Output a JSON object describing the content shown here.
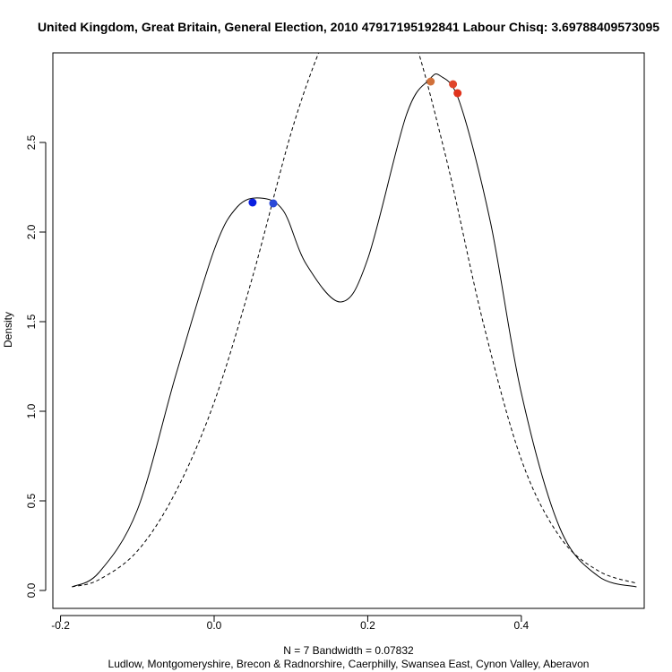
{
  "chart_data": {
    "type": "line",
    "title": "United Kingdom, Great Britain, General Election, 2010 47917195192841 Labour Chisq: 3.69788409573095",
    "ylabel": "Density",
    "xlabel_line1": "N = 7   Bandwidth = 0.07832",
    "xlabel_line2": "Ludlow, Montgomeryshire, Brecon & Radnorshire, Caerphilly, Swansea East, Cynon Valley, Aberavon",
    "xlim": [
      -0.21,
      0.56
    ],
    "ylim": [
      -0.1,
      3.0
    ],
    "x_ticks": [
      -0.2,
      0.0,
      0.2,
      0.4
    ],
    "x_tick_labels": [
      "-0.2",
      "0.0",
      "0.2",
      "0.4"
    ],
    "y_ticks": [
      0.0,
      0.5,
      1.0,
      1.5,
      2.0,
      2.5
    ],
    "y_tick_labels": [
      "0.0",
      "0.5",
      "1.0",
      "1.5",
      "2.0",
      "2.5"
    ],
    "bandwidth": 0.07832,
    "observations": [
      0.05,
      0.077,
      0.282,
      0.311,
      0.317,
      0.286,
      0.292
    ],
    "series": [
      {
        "kind": "kde",
        "line": "solid",
        "x": [
          -0.185,
          -0.15,
          -0.1,
          -0.05,
          0.0,
          0.03,
          0.06,
          0.09,
          0.12,
          0.165,
          0.2,
          0.25,
          0.28,
          0.295,
          0.32,
          0.36,
          0.4,
          0.45,
          0.5,
          0.55
        ],
        "y": [
          0.02,
          0.1,
          0.45,
          1.2,
          1.9,
          2.14,
          2.19,
          2.12,
          1.82,
          1.61,
          1.85,
          2.65,
          2.85,
          2.87,
          2.72,
          2.05,
          1.1,
          0.35,
          0.08,
          0.02
        ]
      },
      {
        "kind": "normal",
        "line": "dashed",
        "x": [
          -0.185,
          -0.15,
          -0.1,
          -0.05,
          0.0,
          0.05,
          0.1,
          0.136,
          0.15,
          0.2,
          0.25,
          0.3,
          0.35,
          0.4,
          0.45,
          0.5,
          0.55
        ],
        "y": [
          0.02,
          0.06,
          0.22,
          0.55,
          1.05,
          1.75,
          2.55,
          3.0,
          3.1,
          3.45,
          3.2,
          2.45,
          1.5,
          0.73,
          0.3,
          0.11,
          0.04
        ]
      }
    ],
    "points": [
      {
        "x": 0.05,
        "y": 2.165,
        "color": "#0a1fe0"
      },
      {
        "x": 0.077,
        "y": 2.16,
        "color": "#2b4ad8"
      },
      {
        "x": 0.282,
        "y": 2.84,
        "color": "#d0703a"
      },
      {
        "x": 0.311,
        "y": 2.825,
        "color": "#e0442a"
      },
      {
        "x": 0.317,
        "y": 2.775,
        "color": "#e0331c"
      }
    ],
    "grid": false,
    "legend": "none"
  }
}
